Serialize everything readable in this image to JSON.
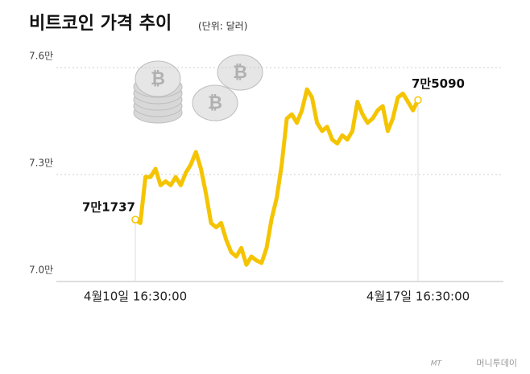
{
  "chart_data": {
    "type": "line",
    "title": "비트코인 가격 추이",
    "subtitle": "(단위: 달러)",
    "categories": [
      "4월10일 16:30:00",
      null,
      null,
      null,
      null,
      null,
      null,
      null,
      null,
      null,
      null,
      null,
      null,
      null,
      null,
      null,
      null,
      null,
      null,
      null,
      null,
      null,
      null,
      null,
      null,
      null,
      null,
      null,
      null,
      null,
      null,
      null,
      null,
      null,
      null,
      null,
      null,
      null,
      null,
      null,
      null,
      null,
      null,
      null,
      null,
      null,
      null,
      null,
      null,
      null,
      null,
      null,
      null,
      null,
      null,
      null,
      "4월17일 16:30:00"
    ],
    "series": [
      {
        "color": "#f5c400",
        "values": [
          71737,
          71640,
          72930,
          72930,
          73160,
          72700,
          72810,
          72700,
          72930,
          72700,
          73050,
          73280,
          73630,
          73160,
          72460,
          71640,
          71520,
          71640,
          71170,
          70820,
          70700,
          70940,
          70470,
          70700,
          70590,
          70520,
          70940,
          71760,
          72340,
          73280,
          74570,
          74690,
          74450,
          74800,
          75390,
          75160,
          74450,
          74220,
          74340,
          73980,
          73870,
          74100,
          73980,
          74220,
          75040,
          74690,
          74450,
          74570,
          74800,
          74920,
          74220,
          74570,
          75160,
          75270,
          75040,
          74800,
          75090
        ],
        "value_labels": [
          "7만1737",
          null,
          null,
          null,
          null,
          null,
          null,
          null,
          null,
          null,
          null,
          null,
          null,
          null,
          null,
          null,
          null,
          null,
          null,
          null,
          null,
          null,
          null,
          null,
          null,
          null,
          null,
          null,
          null,
          null,
          null,
          null,
          null,
          null,
          null,
          null,
          null,
          null,
          null,
          null,
          null,
          null,
          null,
          null,
          null,
          null,
          null,
          null,
          null,
          null,
          null,
          null,
          null,
          null,
          null,
          null,
          "7만5090"
        ]
      }
    ],
    "ylim": [
      70000,
      76000
    ],
    "yticks": [
      {
        "value": 70000,
        "label": "7.0만"
      },
      {
        "value": 73000,
        "label": "7.3만"
      },
      {
        "value": 76000,
        "label": "7.6만"
      }
    ],
    "grid": true,
    "logo": "MT",
    "source": "머니투데이"
  }
}
